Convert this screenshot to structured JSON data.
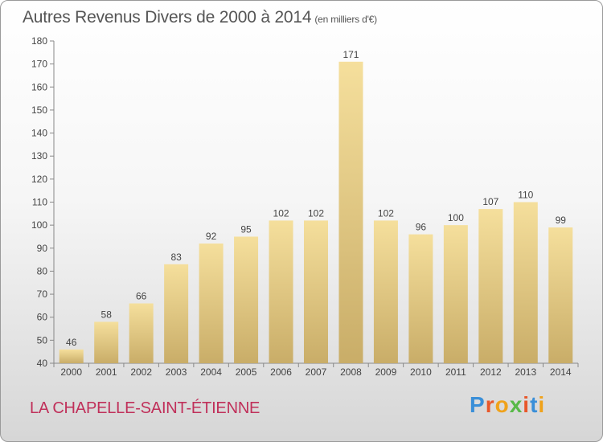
{
  "header": {
    "title": "Autres Revenus Divers de 2000 à 2014",
    "unit": "(en milliers d'€)"
  },
  "footer": {
    "location": "LA CHAPELLE-SAINT-ÉTIENNE",
    "logo_text": "Proxiti"
  },
  "colors": {
    "bar_light": "#f5df9c",
    "bar_dark": "#c9ad68",
    "title": "#555555",
    "location": "#c0305a",
    "logo_letters": [
      "#3a8fd8",
      "#e8572a",
      "#f0a21a",
      "#58b948",
      "#e8572a",
      "#3a8fd8",
      "#f0a21a"
    ]
  },
  "chart_data": {
    "type": "bar",
    "title": "Autres Revenus Divers de 2000 à 2014",
    "subtitle": "(en milliers d'€)",
    "xlabel": "",
    "ylabel": "",
    "categories": [
      "2000",
      "2001",
      "2002",
      "2003",
      "2004",
      "2005",
      "2006",
      "2007",
      "2008",
      "2009",
      "2010",
      "2011",
      "2012",
      "2013",
      "2014"
    ],
    "values": [
      46,
      58,
      66,
      83,
      92,
      95,
      102,
      102,
      171,
      102,
      96,
      100,
      107,
      110,
      99
    ],
    "ylim": [
      40,
      180
    ],
    "yticks": [
      40,
      50,
      60,
      70,
      80,
      90,
      100,
      110,
      120,
      130,
      140,
      150,
      160,
      170,
      180
    ],
    "grid": false,
    "legend": "none"
  }
}
